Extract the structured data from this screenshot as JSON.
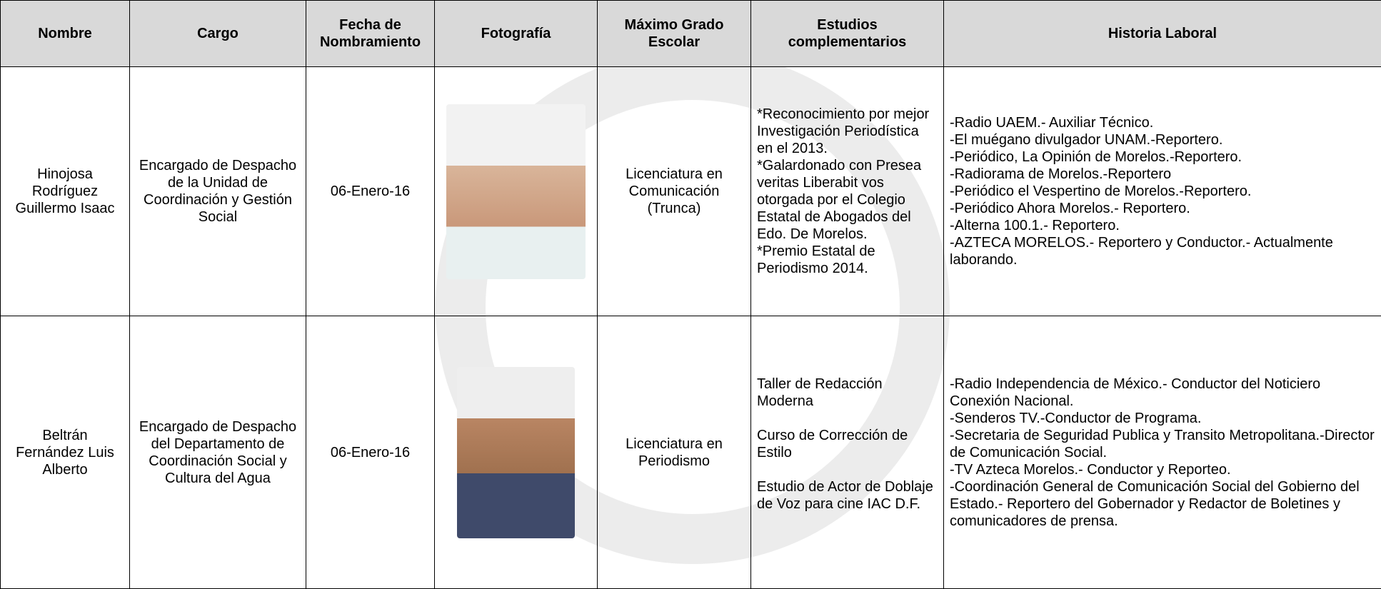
{
  "table": {
    "headers": [
      "Nombre",
      "Cargo",
      "Fecha de Nombramiento",
      "Fotografía",
      "Máximo Grado Escolar",
      "Estudios complementarios",
      "Historia Laboral"
    ],
    "rows": [
      {
        "nombre": "Hinojosa Rodríguez Guillermo Isaac",
        "cargo": "Encargado de Despacho de la Unidad de Coordinación y Gestión Social",
        "fecha": "06-Enero-16",
        "grado": "Licenciatura en Comunicación (Trunca)",
        "estudios": [
          "*Reconocimiento por mejor Investigación Periodística en el 2013.",
          "*Galardonado con Presea veritas Liberabit vos otorgada por el Colegio Estatal de Abogados del Edo. De Morelos.",
          "*Premio Estatal de Periodismo 2014."
        ],
        "historia": [
          "-Radio UAEM.- Auxiliar Técnico.",
          "-El muégano divulgador UNAM.-Reportero.",
          "-Periódico, La Opinión de Morelos.-Reportero.",
          "-Radiorama de Morelos.-Reportero",
          "-Periódico el Vespertino de Morelos.-Reportero.",
          "-Periódico Ahora Morelos.- Reportero.",
          "-Alterna 100.1.- Reportero.",
          "-AZTECA MORELOS.- Reportero y Conductor.- Actualmente laborando."
        ]
      },
      {
        "nombre": "Beltrán Fernández Luis Alberto",
        "cargo": "Encargado de Despacho del Departamento de Coordinación Social y Cultura del Agua",
        "fecha": "06-Enero-16",
        "grado": "Licenciatura en Periodismo",
        "estudios": [
          "Taller de Redacción Moderna",
          "Curso de Corrección de Estilo",
          "Estudio de Actor de Doblaje de Voz para cine IAC D.F."
        ],
        "historia": [
          "-Radio Independencia de México.- Conductor del Noticiero Conexión Nacional.",
          "-Senderos TV.-Conductor de Programa.",
          "-Secretaria de Seguridad Publica y Transito Metropolitana.-Director de Comunicación Social.",
          "-TV Azteca Morelos.- Conductor y Reporteo.",
          "-Coordinación General de Comunicación Social del Gobierno del Estado.- Reportero del Gobernador y Redactor de Boletines y comunicadores de prensa."
        ]
      }
    ]
  }
}
